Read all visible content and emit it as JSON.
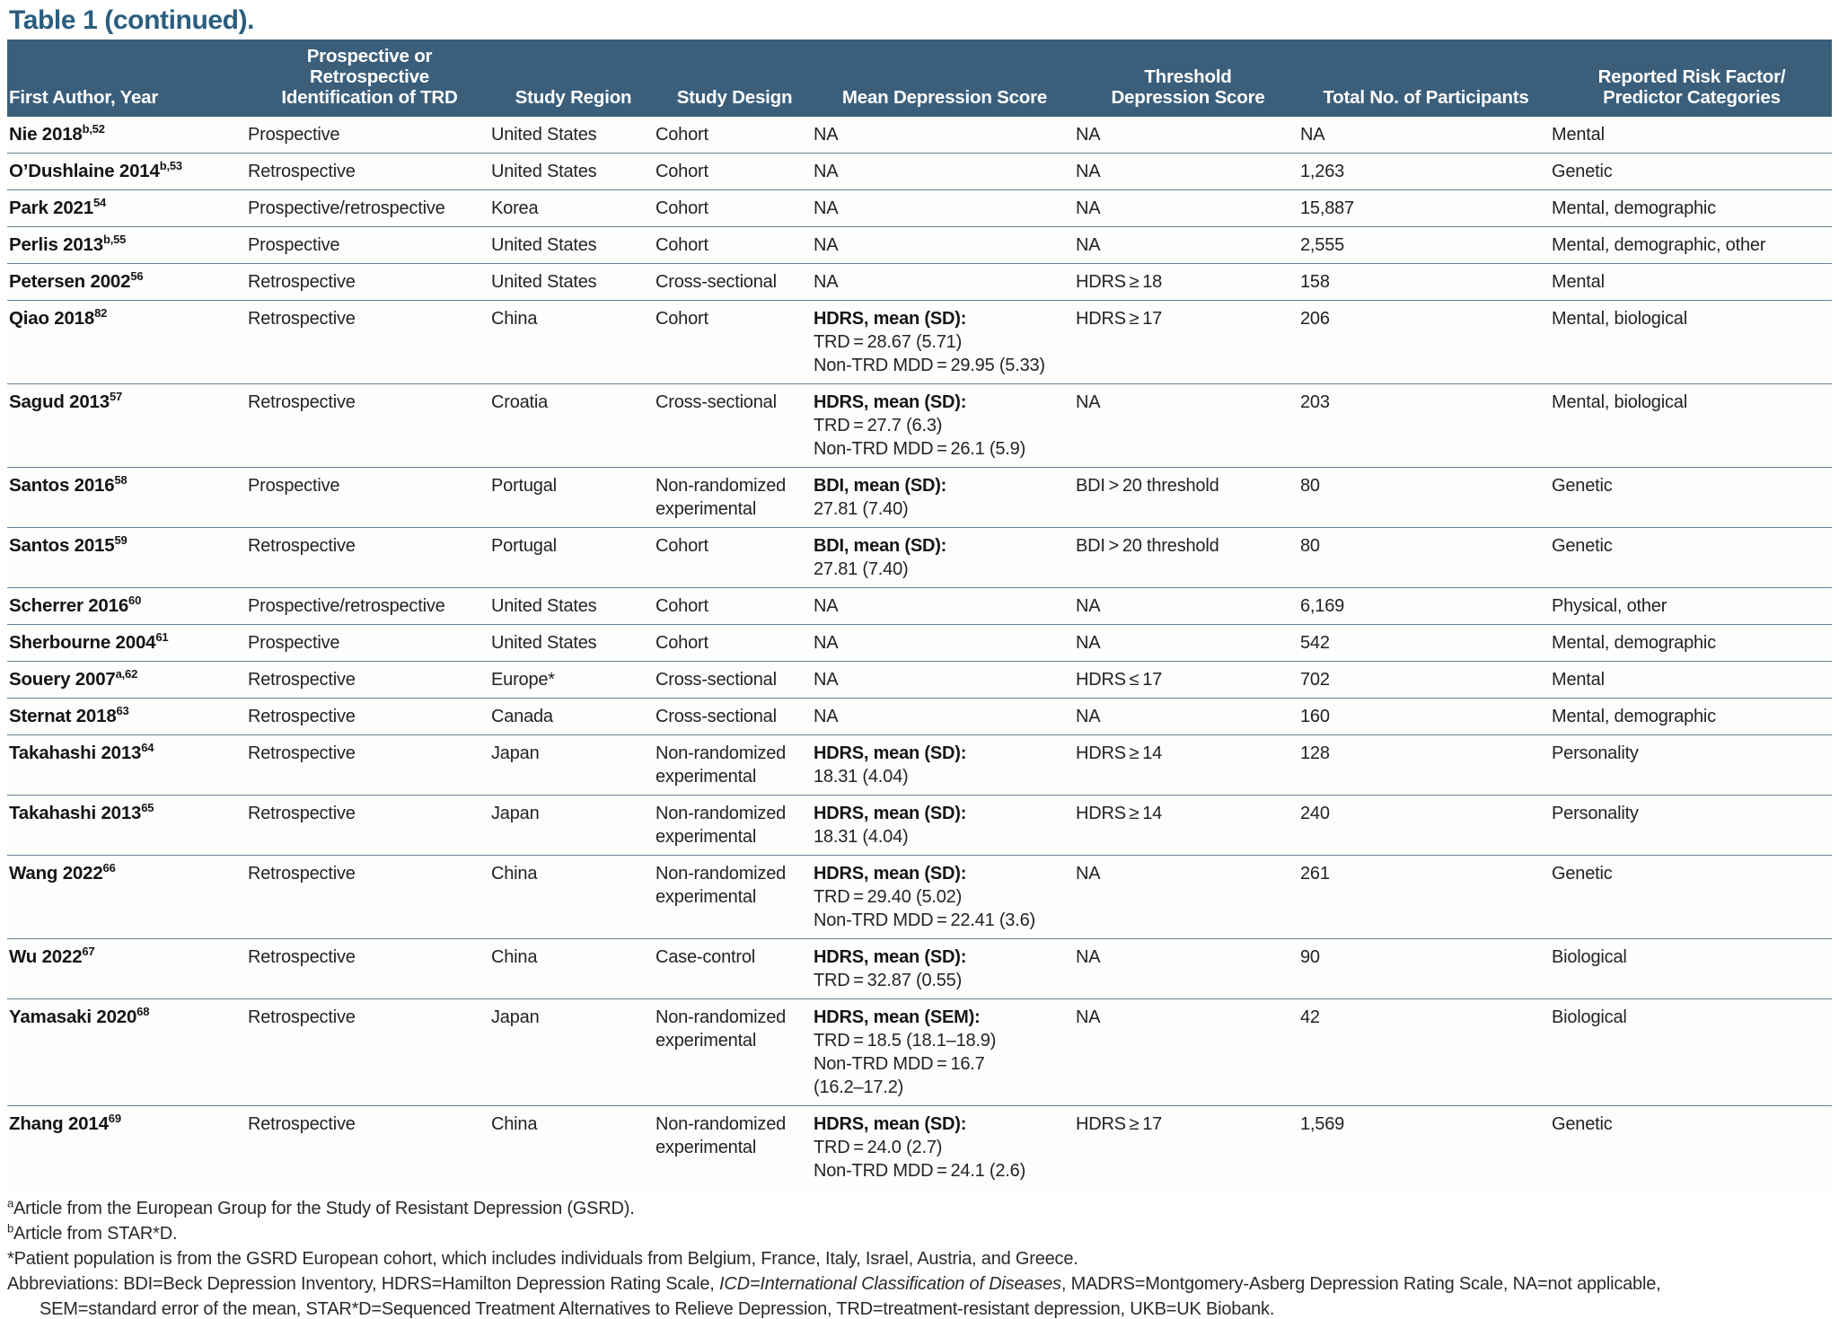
{
  "title": "Table 1 (continued).",
  "colors": {
    "header_bg": "#3b5f7b",
    "title_text": "#2b5d7f",
    "divider": "#698093",
    "bottom_rule": "#5a7d9b"
  },
  "table": {
    "columns": [
      {
        "id": "author",
        "label": "First Author, Year"
      },
      {
        "id": "identification",
        "label": "Prospective or Retrospective\nIdentification of TRD"
      },
      {
        "id": "region",
        "label": "Study Region"
      },
      {
        "id": "design",
        "label": "Study Design"
      },
      {
        "id": "mean_score",
        "label": "Mean Depression Score"
      },
      {
        "id": "threshold",
        "label": "Threshold\nDepression Score"
      },
      {
        "id": "participants",
        "label": "Total No. of Participants"
      },
      {
        "id": "categories",
        "label": "Reported Risk Factor/\nPredictor Categories"
      }
    ],
    "rows": [
      {
        "author": "Nie 2018",
        "sup": "b,52",
        "identification": "Prospective",
        "region": "United States",
        "design": "Cohort",
        "mean": "NA",
        "threshold": "NA",
        "participants": "NA",
        "categories": "Mental"
      },
      {
        "author": "O’Dushlaine 2014",
        "sup": "b,53",
        "identification": "Retrospective",
        "region": "United States",
        "design": "Cohort",
        "mean": "NA",
        "threshold": "NA",
        "participants": "1,263",
        "categories": "Genetic"
      },
      {
        "author": "Park 2021",
        "sup": "54",
        "identification": "Prospective/retrospective",
        "region": "Korea",
        "design": "Cohort",
        "mean": "NA",
        "threshold": "NA",
        "participants": "15,887",
        "categories": "Mental, demographic"
      },
      {
        "author": "Perlis 2013",
        "sup": "b,55",
        "identification": "Prospective",
        "region": "United States",
        "design": "Cohort",
        "mean": "NA",
        "threshold": "NA",
        "participants": "2,555",
        "categories": "Mental, demographic, other"
      },
      {
        "author": "Petersen 2002",
        "sup": "56",
        "identification": "Retrospective",
        "region": "United States",
        "design": "Cross-sectional",
        "mean": "NA",
        "threshold": "HDRS ≥ 18",
        "participants": "158",
        "categories": "Mental"
      },
      {
        "author": "Qiao 2018",
        "sup": "82",
        "identification": "Retrospective",
        "region": "China",
        "design": "Cohort",
        "mean": {
          "label": "HDRS, mean (SD):",
          "lines": [
            "TRD = 28.67 (5.71)",
            "Non-TRD MDD = 29.95 (5.33)"
          ]
        },
        "threshold": "HDRS ≥ 17",
        "participants": "206",
        "categories": "Mental, biological"
      },
      {
        "author": "Sagud 2013",
        "sup": "57",
        "identification": "Retrospective",
        "region": "Croatia",
        "design": "Cross-sectional",
        "mean": {
          "label": "HDRS, mean (SD):",
          "lines": [
            "TRD = 27.7 (6.3)",
            "Non-TRD MDD = 26.1 (5.9)"
          ]
        },
        "threshold": "NA",
        "participants": "203",
        "categories": "Mental, biological"
      },
      {
        "author": "Santos 2016",
        "sup": "58",
        "identification": "Prospective",
        "region": "Portugal",
        "design": "Non-randomized experimental",
        "mean": {
          "label": "BDI, mean (SD):",
          "lines": [
            "27.81 (7.40)"
          ]
        },
        "threshold": "BDI > 20 threshold",
        "participants": "80",
        "categories": "Genetic"
      },
      {
        "author": "Santos 2015",
        "sup": "59",
        "identification": "Retrospective",
        "region": "Portugal",
        "design": "Cohort",
        "mean": {
          "label": "BDI, mean (SD):",
          "lines": [
            "27.81 (7.40)"
          ]
        },
        "threshold": "BDI > 20 threshold",
        "participants": "80",
        "categories": "Genetic"
      },
      {
        "author": "Scherrer 2016",
        "sup": "60",
        "identification": "Prospective/retrospective",
        "region": "United States",
        "design": "Cohort",
        "mean": "NA",
        "threshold": "NA",
        "participants": "6,169",
        "categories": "Physical, other"
      },
      {
        "author": "Sherbourne 2004",
        "sup": "61",
        "identification": "Prospective",
        "region": "United States",
        "design": "Cohort",
        "mean": "NA",
        "threshold": "NA",
        "participants": "542",
        "categories": "Mental, demographic"
      },
      {
        "author": "Souery 2007",
        "sup": "a,62",
        "identification": "Retrospective",
        "region": "Europe*",
        "design": "Cross-sectional",
        "mean": "NA",
        "threshold": "HDRS ≤ 17",
        "participants": "702",
        "categories": "Mental"
      },
      {
        "author": "Sternat 2018",
        "sup": "63",
        "identification": "Retrospective",
        "region": "Canada",
        "design": "Cross-sectional",
        "mean": "NA",
        "threshold": "NA",
        "participants": "160",
        "categories": "Mental, demographic"
      },
      {
        "author": "Takahashi 2013",
        "sup": "64",
        "identification": "Retrospective",
        "region": "Japan",
        "design": "Non-randomized experimental",
        "mean": {
          "label": "HDRS, mean (SD):",
          "lines": [
            "18.31 (4.04)"
          ]
        },
        "threshold": "HDRS ≥ 14",
        "participants": "128",
        "categories": "Personality"
      },
      {
        "author": "Takahashi 2013",
        "sup": "65",
        "identification": "Retrospective",
        "region": "Japan",
        "design": "Non-randomized experimental",
        "mean": {
          "label": "HDRS, mean (SD):",
          "lines": [
            "18.31 (4.04)"
          ]
        },
        "threshold": "HDRS ≥ 14",
        "participants": "240",
        "categories": "Personality"
      },
      {
        "author": "Wang 2022",
        "sup": "66",
        "identification": "Retrospective",
        "region": "China",
        "design": "Non-randomized experimental",
        "mean": {
          "label": "HDRS, mean (SD):",
          "lines": [
            "TRD = 29.40 (5.02)",
            "Non-TRD MDD = 22.41 (3.6)"
          ]
        },
        "threshold": "NA",
        "participants": "261",
        "categories": "Genetic"
      },
      {
        "author": "Wu 2022",
        "sup": "67",
        "identification": "Retrospective",
        "region": "China",
        "design": "Case-control",
        "mean": {
          "label": "HDRS, mean (SD):",
          "lines": [
            "TRD = 32.87 (0.55)"
          ]
        },
        "threshold": "NA",
        "participants": "90",
        "categories": "Biological"
      },
      {
        "author": "Yamasaki 2020",
        "sup": "68",
        "identification": "Retrospective",
        "region": "Japan",
        "design": "Non-randomized experimental",
        "mean": {
          "label": "HDRS, mean (SEM):",
          "lines": [
            "TRD = 18.5 (18.1–18.9)",
            "Non-TRD MDD = 16.7",
            "(16.2–17.2)"
          ]
        },
        "threshold": "NA",
        "participants": "42",
        "categories": "Biological"
      },
      {
        "author": "Zhang 2014",
        "sup": "69",
        "identification": "Retrospective",
        "region": "China",
        "design": "Non-randomized experimental",
        "mean": {
          "label": "HDRS, mean (SD):",
          "lines": [
            "TRD = 24.0 (2.7)",
            "Non-TRD MDD = 24.1 (2.6)"
          ]
        },
        "threshold": "HDRS ≥ 17",
        "participants": "1,569",
        "categories": "Genetic"
      }
    ]
  },
  "footnotes": {
    "a": {
      "marker": "a",
      "text": "Article from the European Group for the Study of Resistant Depression (GSRD)."
    },
    "b": {
      "marker": "b",
      "text": "Article from STAR*D."
    },
    "star": {
      "marker": "*",
      "text": "Patient population is from the GSRD European cohort, which includes individuals from Belgium, France, Italy, Israel, Austria, and Greece."
    },
    "abbr": {
      "pre": "Abbreviations: BDI=Beck Depression Inventory, HDRS=Hamilton Depression Rating Scale, ",
      "italic": "ICD=International Classification of Diseases",
      "post": ", MADRS=Montgomery-Asberg Depression Rating Scale, NA=not applicable,",
      "line2": "SEM=standard error of the mean, STAR*D=Sequenced Treatment Alternatives to Relieve Depression, TRD=treatment-resistant depression, UKB=UK Biobank."
    }
  }
}
